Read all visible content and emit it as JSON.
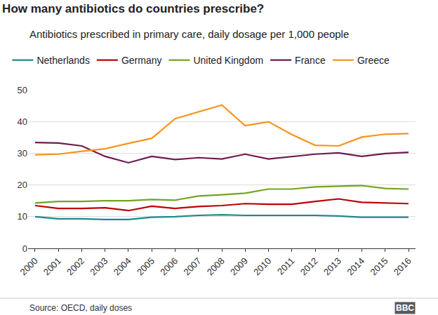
{
  "chart_data": {
    "type": "line",
    "title": "How many antibiotics do countries prescribe?",
    "subtitle": "Antibiotics prescribed in primary care, daily dosage per 1,000 people",
    "source": "Source: OECD, daily doses",
    "credit": "BBC",
    "categories": [
      "2000",
      "2001",
      "2002",
      "2003",
      "2004",
      "2005",
      "2006",
      "2007",
      "2008",
      "2009",
      "2010",
      "2011",
      "2012",
      "2013",
      "2014",
      "2015",
      "2016"
    ],
    "series": [
      {
        "name": "Netherlands",
        "color": "#1a8a8f",
        "values": [
          10.0,
          9.3,
          9.3,
          9.1,
          9.1,
          9.8,
          10.0,
          10.4,
          10.6,
          10.4,
          10.4,
          10.4,
          10.4,
          10.2,
          9.8,
          9.8,
          9.8
        ]
      },
      {
        "name": "Germany",
        "color": "#c00000",
        "values": [
          13.5,
          12.6,
          12.6,
          12.8,
          11.9,
          13.3,
          12.6,
          13.2,
          13.5,
          14.1,
          13.9,
          13.9,
          14.8,
          15.6,
          14.5,
          14.3,
          14.1
        ]
      },
      {
        "name": "United Kingdom",
        "color": "#72a51f",
        "values": [
          14.3,
          14.8,
          14.8,
          15.0,
          15.0,
          15.4,
          15.2,
          16.5,
          16.9,
          17.4,
          18.7,
          18.7,
          19.4,
          19.6,
          19.8,
          18.9,
          18.7
        ]
      },
      {
        "name": "France",
        "color": "#6e1b4f",
        "values": [
          33.4,
          33.2,
          32.3,
          29.0,
          27.0,
          29.0,
          28.0,
          28.6,
          28.2,
          29.7,
          28.2,
          28.9,
          29.7,
          30.1,
          29.0,
          29.9,
          30.3
        ]
      },
      {
        "name": "Greece",
        "color": "#f7941d",
        "values": [
          29.5,
          29.7,
          30.6,
          31.4,
          33.1,
          34.7,
          40.9,
          43.1,
          45.2,
          38.7,
          39.9,
          35.9,
          32.5,
          32.3,
          35.1,
          36.0,
          36.2
        ]
      }
    ],
    "ylim": [
      0,
      50
    ],
    "yticks": [
      0,
      10,
      20,
      30,
      40,
      50
    ],
    "grid": true,
    "legend": "top"
  }
}
